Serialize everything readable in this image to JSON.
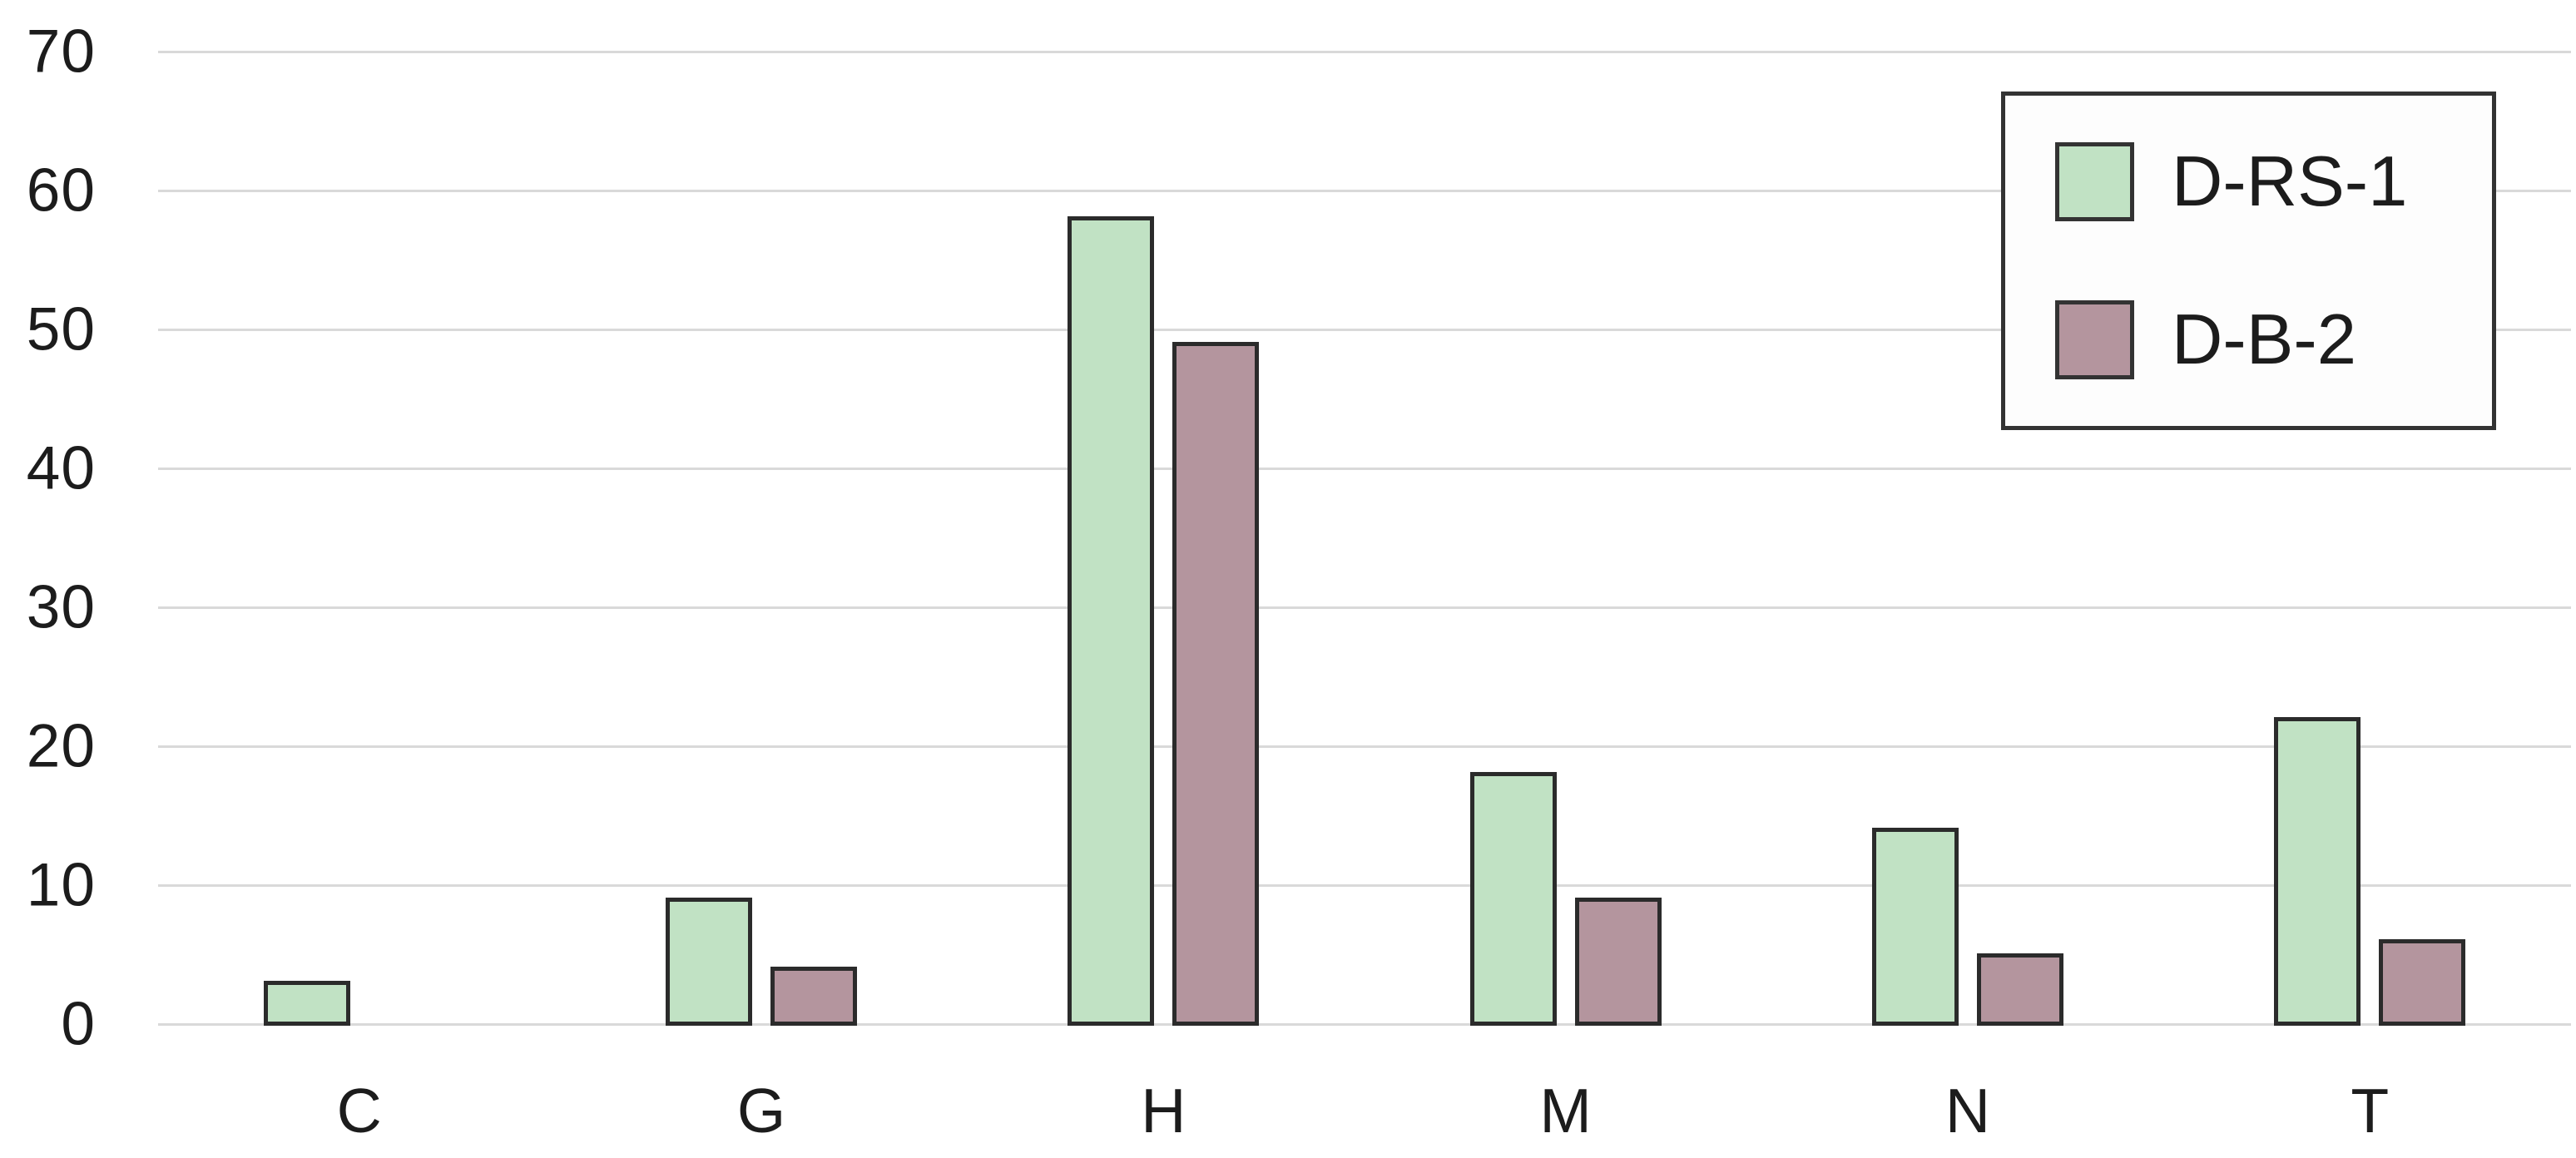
{
  "chart_data": {
    "type": "bar",
    "title": "",
    "xlabel": "",
    "ylabel": "",
    "categories": [
      "C",
      "G",
      "H",
      "M",
      "N",
      "T"
    ],
    "series": [
      {
        "name": "D-RS-1",
        "color": "#c1e2c4",
        "values": [
          3,
          9,
          58,
          18,
          14,
          22
        ]
      },
      {
        "name": "D-B-2",
        "color": "#b4959e",
        "values": [
          0,
          4,
          49,
          9,
          5,
          6
        ]
      }
    ],
    "ylim": [
      0,
      70
    ],
    "yticks": [
      0,
      10,
      20,
      30,
      40,
      50,
      60,
      70
    ],
    "grid": true,
    "legend_position": "top-right",
    "bar_border_color": "#2b2b2b",
    "legend_border_color": "#333333",
    "gridline_color": "#d9d9d9",
    "text_color": "#1c1c1c",
    "background_color": "#ffffff"
  }
}
